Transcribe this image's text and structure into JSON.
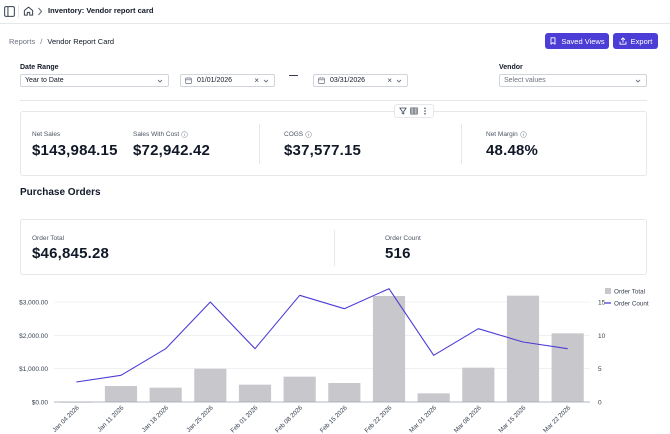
{
  "header": {
    "title": "Inventory: Vendor report card"
  },
  "breadcrumb": {
    "parent": "Reports",
    "separator": "/",
    "current": "Vendor Report Card"
  },
  "actions": {
    "saved_views": "Saved Views",
    "export": "Export"
  },
  "filters": {
    "date_range": {
      "label": "Date Range",
      "value": "Year to Date"
    },
    "start_date": "01/01/2026",
    "end_date": "03/31/2026",
    "vendor": {
      "label": "Vendor",
      "placeholder": "Select values"
    }
  },
  "summary": {
    "net_sales": {
      "label": "Net Sales",
      "value": "$143,984.15"
    },
    "sales_with_cost": {
      "label": "Sales With Cost",
      "value": "$72,942.42"
    },
    "cogs": {
      "label": "COGS",
      "value": "$37,577.15"
    },
    "net_margin": {
      "label": "Net Margin",
      "value": "48.48%"
    }
  },
  "purchase_orders": {
    "title": "Purchase Orders",
    "order_total": {
      "label": "Order Total",
      "value": "$46,845.28"
    },
    "order_count": {
      "label": "Order Count",
      "value": "516"
    }
  },
  "colors": {
    "accent": "#4b3dd6",
    "bar": "#c8c7cc",
    "line": "#4b3dd6"
  },
  "chart_data": {
    "type": "bar",
    "categories": [
      "Jan 04 2026",
      "Jan 11 2026",
      "Jan 18 2026",
      "Jan 25 2026",
      "Feb 01 2026",
      "Feb 08 2026",
      "Feb 15 2026",
      "Feb 22 2026",
      "Mar 01 2026",
      "Mar 08 2026",
      "Mar 15 2026",
      "Mar 22 2026"
    ],
    "series": [
      {
        "name": "Order Total",
        "type": "bar",
        "axis": "left",
        "values": [
          0,
          480,
          430,
          1000,
          520,
          760,
          570,
          3180,
          260,
          1030,
          3190,
          2060
        ]
      },
      {
        "name": "Order Count",
        "type": "line",
        "axis": "right",
        "values": [
          3,
          4,
          8,
          15,
          8,
          16,
          14,
          17,
          7,
          11,
          9,
          8
        ]
      }
    ],
    "left_axis": {
      "ticks": [
        "$0.00",
        "$1,000.00",
        "$2,000.00",
        "$3,000.00"
      ],
      "tick_values": [
        0,
        1000,
        2000,
        3000
      ],
      "range": [
        0,
        3000
      ]
    },
    "right_axis": {
      "ticks": [
        "0",
        "5",
        "10",
        "15"
      ],
      "tick_values": [
        0,
        5,
        10,
        15
      ],
      "range": [
        0,
        15
      ]
    },
    "legend": [
      "Order Total",
      "Order Count"
    ],
    "legend_position": "top-right"
  }
}
